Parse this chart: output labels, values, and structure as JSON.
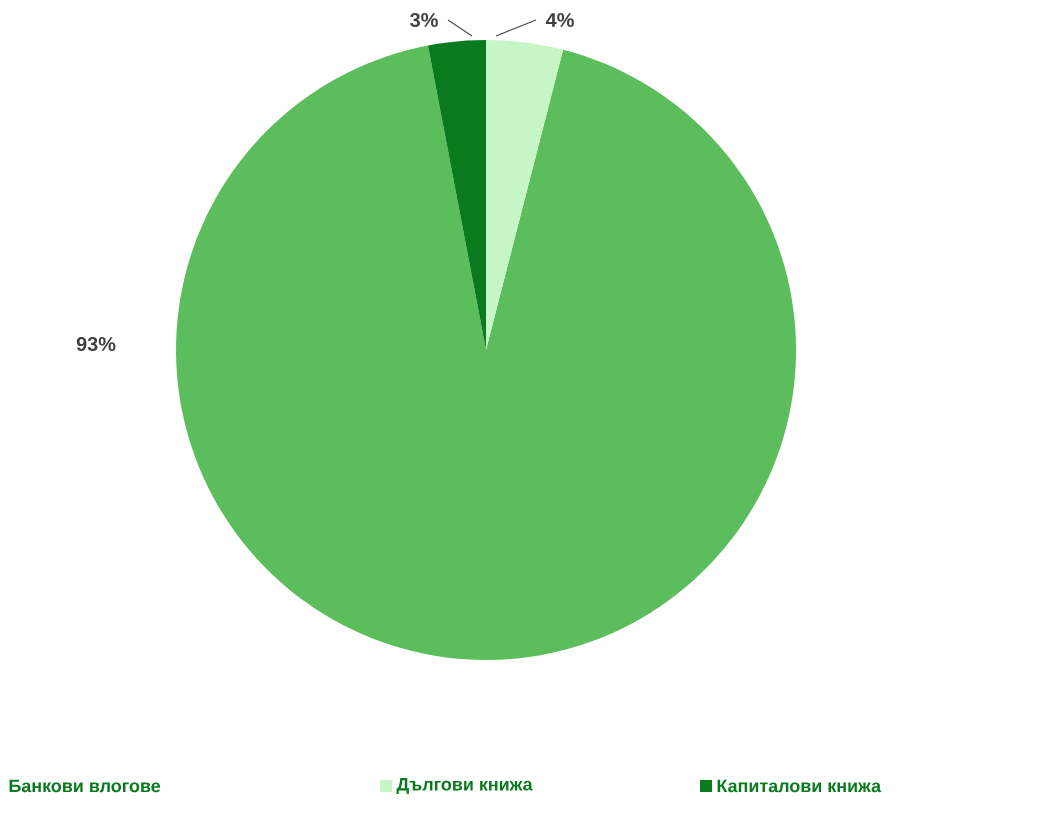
{
  "chart_data": {
    "type": "pie",
    "categories": [
      "Банкови влогове",
      "Дългови книжа",
      "Капиталови книжа"
    ],
    "values": [
      93,
      4,
      3
    ],
    "colors": [
      "#5cbd5c",
      "#c6f5c6",
      "#0a7a1e"
    ],
    "value_labels": [
      "93%",
      "4%",
      "3%"
    ],
    "legend": "bottom"
  }
}
